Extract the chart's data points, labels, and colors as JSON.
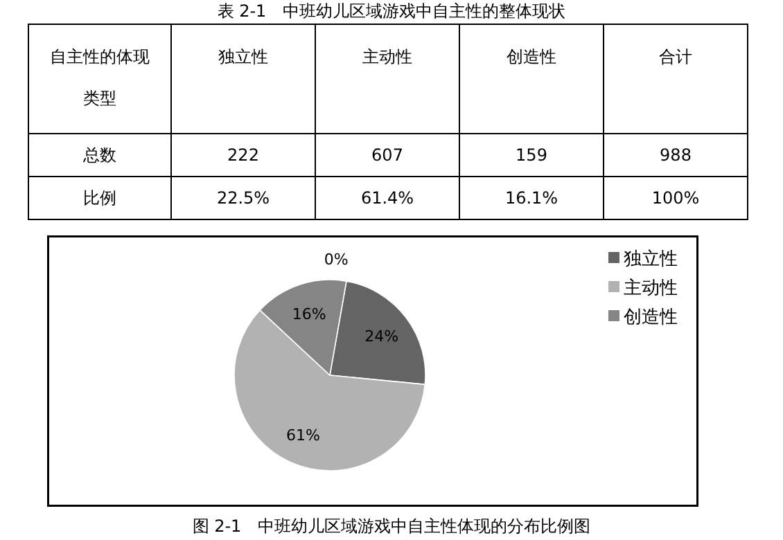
{
  "chart_data": [
    {
      "type": "other",
      "title": "表 2-1　中班幼儿区域游戏中自主性的整体现状",
      "annotations": [
        "自主性的体现类型",
        "独立性",
        "主动性",
        "创造性",
        "合计",
        "总数",
        "222",
        "607",
        "159",
        "988",
        "比例",
        "22.5%",
        "61.4%",
        "16.1%",
        "100%"
      ]
    },
    {
      "type": "pie",
      "categories": [
        "独立性",
        "主动性",
        "创造性",
        null
      ],
      "values": [
        24,
        61,
        16,
        0
      ],
      "colors": [
        "#646464",
        "#b2b2b2",
        "#858585",
        "#9a9a9a"
      ],
      "value_labels": [
        "24%",
        "61%",
        "16%",
        "0%"
      ],
      "legend": "top right",
      "annotations": [
        "图 2-1　中班幼儿区域游戏中自主性体现的分布比例图"
      ]
    }
  ]
}
